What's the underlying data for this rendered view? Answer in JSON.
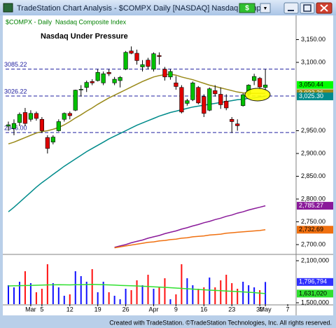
{
  "window": {
    "title": "TradeStation Chart Analysis - $COMPX Daily [NASDAQ] Nasdaq Compo",
    "symbol_button": "$",
    "menu_button": "▼"
  },
  "chart_data": {
    "type": "candlestick",
    "title": "$COMPX - Daily  Nasdaq Composite Index",
    "annotation": "Nasdaq Under Pressure",
    "up_color": "#00c000",
    "down_color": "#e00000",
    "x": [
      0,
      1,
      2,
      3,
      4,
      5,
      6,
      7,
      8,
      9,
      10,
      11,
      12,
      13,
      14,
      15,
      16,
      17,
      18,
      19,
      20,
      21,
      22,
      23,
      24,
      25,
      26,
      27,
      28,
      29,
      30,
      31,
      32,
      33,
      34,
      35,
      36,
      37,
      38,
      39,
      40,
      41,
      42,
      43,
      44,
      45,
      46
    ],
    "open": [
      2960,
      2955,
      2968,
      2990,
      2975,
      2988,
      2975,
      2935,
      2925,
      2950,
      2975,
      2988,
      2995,
      3040,
      3045,
      3058,
      3060,
      3055,
      3078,
      3055,
      3060,
      3085,
      3125,
      3120,
      3090,
      3105,
      3085,
      3115,
      3085,
      3068,
      3055,
      3045,
      3010,
      3018,
      3045,
      3025,
      2995,
      3038,
      3030,
      3015,
      2975,
      2965,
      3005,
      3030,
      3060,
      3065,
      3045
    ],
    "high": [
      2970,
      2975,
      2990,
      3000,
      2995,
      2992,
      2980,
      2940,
      2940,
      2975,
      2990,
      2992,
      3040,
      3050,
      3060,
      3063,
      3085,
      3080,
      3085,
      3068,
      3070,
      3125,
      3135,
      3128,
      3105,
      3110,
      3122,
      3122,
      3090,
      3085,
      3070,
      3050,
      3020,
      3058,
      3048,
      3030,
      3045,
      3050,
      3045,
      3030,
      2980,
      2975,
      3032,
      3052,
      3075,
      3068,
      3085
    ],
    "low": [
      2950,
      2940,
      2960,
      2960,
      2970,
      2972,
      2945,
      2900,
      2920,
      2948,
      2970,
      2975,
      2993,
      3025,
      3035,
      3050,
      3058,
      3050,
      3070,
      3050,
      3045,
      3083,
      3118,
      3095,
      3080,
      3085,
      3080,
      3095,
      3060,
      3062,
      3040,
      2988,
      3005,
      3015,
      3008,
      2980,
      2993,
      3025,
      2998,
      2995,
      2945,
      2950,
      3003,
      3025,
      3050,
      3040,
      3040
    ],
    "close": [
      2963,
      2966,
      2986,
      2966,
      2988,
      2977,
      2950,
      2911,
      2936,
      2970,
      2988,
      2983,
      3039,
      3041,
      3056,
      3055,
      3078,
      3075,
      3075,
      3063,
      3067,
      3122,
      3120,
      3104,
      3095,
      3091,
      3119,
      3113,
      3068,
      3080,
      3047,
      2991,
      3016,
      3055,
      3011,
      2988,
      3042,
      3031,
      3007,
      3000,
      2970,
      2961,
      3029,
      3050,
      3069,
      3046,
      3050.44
    ],
    "last_label": "3,050.44",
    "last_color": "#00ff00",
    "series": [
      {
        "color": "#9a8a1a",
        "last_label": "3,032.36",
        "values": [
          2921,
          2925,
          2930,
          2935,
          2940,
          2945,
          2948,
          2950,
          2953,
          2957,
          2963,
          2970,
          2978,
          2985,
          2993,
          3000,
          3008,
          3015,
          3022,
          3028,
          3034,
          3040,
          3046,
          3052,
          3058,
          3063,
          3068,
          3071,
          3073,
          3074,
          3072,
          3068,
          3065,
          3062,
          3058,
          3054,
          3050,
          3047,
          3044,
          3041,
          3038,
          3035,
          3033,
          3032,
          3032,
          3032,
          3032.36
        ]
      },
      {
        "color": "#008b8b",
        "last_label": "3,025.30",
        "values": [
          2772,
          2782,
          2793,
          2804,
          2815,
          2826,
          2836,
          2845,
          2854,
          2863,
          2872,
          2880,
          2888,
          2896,
          2904,
          2911,
          2918,
          2925,
          2932,
          2938,
          2944,
          2950,
          2956,
          2962,
          2967,
          2972,
          2977,
          2982,
          2986,
          2990,
          2993,
          2996,
          2999,
          3002,
          3004,
          3006,
          3008,
          3010,
          3012,
          3014,
          3016,
          3018,
          3019,
          3021,
          3022,
          3024,
          3025.3
        ]
      },
      {
        "color": "#8a1a9a",
        "last_label": "2,785.27",
        "values": [
          null,
          null,
          null,
          null,
          null,
          null,
          null,
          null,
          null,
          null,
          null,
          null,
          null,
          null,
          null,
          null,
          null,
          null,
          null,
          2694,
          2697,
          2700,
          2704,
          2707,
          2710,
          2714,
          2717,
          2720,
          2724,
          2727,
          2730,
          2734,
          2737,
          2741,
          2744,
          2748,
          2751,
          2755,
          2758,
          2762,
          2765,
          2769,
          2772,
          2776,
          2779,
          2782,
          2785.27
        ]
      },
      {
        "color": "#f07010",
        "last_label": "2,732.69",
        "values": [
          null,
          null,
          null,
          null,
          null,
          null,
          null,
          null,
          null,
          null,
          null,
          null,
          null,
          null,
          null,
          null,
          null,
          null,
          null,
          2693,
          2695,
          2697,
          2699,
          2701,
          2703,
          2705,
          2706,
          2708,
          2709,
          2711,
          2712,
          2714,
          2715,
          2717,
          2718,
          2719,
          2721,
          2722,
          2723,
          2725,
          2726,
          2727,
          2728,
          2729,
          2730,
          2731,
          2732.69
        ]
      }
    ],
    "levels": [
      {
        "value": 3085.22,
        "label": "3085.22"
      },
      {
        "value": 3026.22,
        "label": "3026.22"
      },
      {
        "value": 2946.0,
        "label": "2946.00"
      }
    ],
    "level_color": "#2020a0",
    "ylim": [
      2680,
      3200
    ],
    "yticks": [
      {
        "value": 3150,
        "label": "3,150.00"
      },
      {
        "value": 3100,
        "label": "3,100.00"
      },
      {
        "value": 2950,
        "label": "2,950.00"
      },
      {
        "value": 2900,
        "label": "2,900.00"
      },
      {
        "value": 2850,
        "label": "2,850.00"
      },
      {
        "value": 2800,
        "label": "2,800.00"
      },
      {
        "value": 2750,
        "label": "2,750.00"
      },
      {
        "value": 2700,
        "label": "2,700.00"
      }
    ],
    "xlim": [
      -0.5,
      51.5
    ],
    "xticks": [
      {
        "value": 4,
        "label": "Mar"
      },
      {
        "value": 6,
        "label": "5"
      },
      {
        "value": 11,
        "label": "12"
      },
      {
        "value": 16,
        "label": "19"
      },
      {
        "value": 21,
        "label": "26"
      },
      {
        "value": 26,
        "label": "Apr"
      },
      {
        "value": 30,
        "label": "9"
      },
      {
        "value": 35,
        "label": "16"
      },
      {
        "value": 40,
        "label": "23"
      },
      {
        "value": 45,
        "label": "30"
      },
      {
        "value": 46,
        "label": "May"
      },
      {
        "value": 50,
        "label": "7"
      }
    ],
    "volume": {
      "up_color": "#1010ff",
      "down_color": "#ff1010",
      "last_label": "1,796,794",
      "last_color": "#3030ff",
      "values": [
        1750000,
        1720000,
        1800000,
        1950000,
        1780000,
        1650000,
        1700000,
        2050000,
        1780000,
        1720000,
        1600000,
        1620000,
        1950000,
        1880000,
        1800000,
        1980000,
        1650000,
        1800000,
        1650000,
        1600000,
        1550000,
        1700000,
        1680000,
        1820000,
        1750000,
        1900000,
        1700000,
        1720000,
        1850000,
        1550000,
        1620000,
        2050000,
        1850000,
        1750000,
        1700000,
        1720000,
        1860000,
        1720000,
        1820000,
        1900000,
        1780000,
        1700000,
        1800000,
        1750000,
        1720000,
        1680000,
        1796794
      ],
      "ylim": [
        1480000,
        2160000
      ],
      "yticks": [
        {
          "value": 2100000,
          "label": "2,100,000"
        },
        {
          "value": 1500000,
          "label": "1,500,000"
        }
      ]
    },
    "volume_ma": {
      "color": "#30e030",
      "last_label": "1,631,020",
      "values": [
        1740000,
        1742000,
        1744000,
        1746000,
        1748000,
        1750000,
        1752000,
        1755000,
        1756000,
        1757000,
        1756000,
        1755000,
        1757000,
        1758000,
        1760000,
        1762000,
        1760000,
        1758000,
        1755000,
        1752000,
        1748000,
        1745000,
        1742000,
        1740000,
        1736000,
        1732000,
        1728000,
        1724000,
        1720000,
        1715000,
        1710000,
        1705000,
        1700000,
        1695000,
        1690000,
        1685000,
        1680000,
        1676000,
        1672000,
        1668000,
        1664000,
        1660000,
        1655000,
        1650000,
        1645000,
        1638000,
        1631020
      ]
    }
  },
  "footer": "Created with TradeStation. ©TradeStation Technologies, Inc. All rights reserved."
}
